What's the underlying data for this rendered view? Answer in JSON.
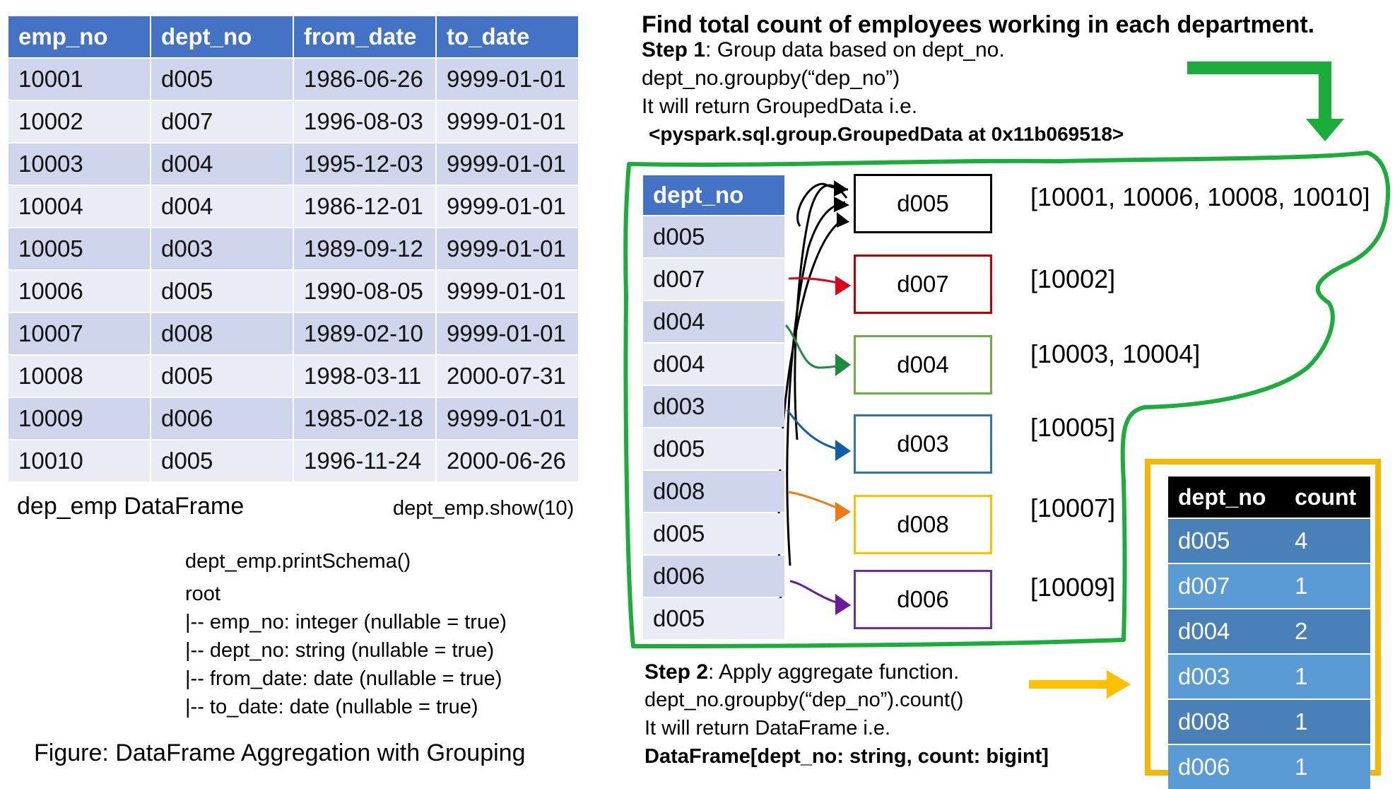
{
  "title": "Find total count of employees working in each department.",
  "emp_table": {
    "headers": [
      "emp_no",
      "dept_no",
      "from_date",
      "to_date"
    ],
    "rows": [
      [
        "10001",
        "d005",
        "1986-06-26",
        "9999-01-01"
      ],
      [
        "10002",
        "d007",
        "1996-08-03",
        "9999-01-01"
      ],
      [
        "10003",
        "d004",
        "1995-12-03",
        "9999-01-01"
      ],
      [
        "10004",
        "d004",
        "1986-12-01",
        "9999-01-01"
      ],
      [
        "10005",
        "d003",
        "1989-09-12",
        "9999-01-01"
      ],
      [
        "10006",
        "d005",
        "1990-08-05",
        "9999-01-01"
      ],
      [
        "10007",
        "d008",
        "1989-02-10",
        "9999-01-01"
      ],
      [
        "10008",
        "d005",
        "1998-03-11",
        "2000-07-31"
      ],
      [
        "10009",
        "d006",
        "1985-02-18",
        "9999-01-01"
      ],
      [
        "10010",
        "d005",
        "1996-11-24",
        "2000-06-26"
      ]
    ]
  },
  "captions": {
    "df_name": "dep_emp DataFrame",
    "show_call": "dept_emp.show(10)",
    "figure": "Figure: DataFrame Aggregation with Grouping"
  },
  "schema": {
    "call": "dept_emp.printSchema()",
    "root": "root",
    "fields": [
      "|-- emp_no: integer (nullable = true)",
      "|-- dept_no: string (nullable = true)",
      "|-- from_date: date (nullable = true)",
      "|-- to_date: date (nullable = true)"
    ]
  },
  "step1": {
    "label": "Step 1",
    "text": ": Group data based on dept_no.",
    "code": "dept_no.groupby(“dep_no”)",
    "returns": "It will return GroupedData i.e.",
    "object": "<pyspark.sql.group.GroupedData at 0x11b069518>"
  },
  "step2": {
    "label": "Step 2",
    "text": ": Apply aggregate function.",
    "code": "dept_no.groupby(“dep_no”).count()",
    "returns": "It will return DataFrame i.e.",
    "object": "DataFrame[dept_no: string, count: bigint]"
  },
  "dept_column": {
    "header": "dept_no",
    "values": [
      "d005",
      "d007",
      "d004",
      "d004",
      "d003",
      "d005",
      "d008",
      "d005",
      "d006",
      "d005"
    ]
  },
  "groups": [
    {
      "dept": "d005",
      "members": "[10001, 10006, 10008, 10010]",
      "color": "#000000"
    },
    {
      "dept": "d007",
      "members": "[10002]",
      "color": "#c00000"
    },
    {
      "dept": "d004",
      "members": "[10003, 10004]",
      "color": "#70ad47"
    },
    {
      "dept": "d003",
      "members": "[10005]",
      "color": "#2e75b6"
    },
    {
      "dept": "d008",
      "members": "[10007]",
      "color": "#ffc000"
    },
    {
      "dept": "d006",
      "members": "[10009]",
      "color": "#7030a0"
    }
  ],
  "result_table": {
    "headers": [
      "dept_no",
      "count"
    ],
    "rows": [
      [
        "d005",
        "4"
      ],
      [
        "d007",
        "1"
      ],
      [
        "d004",
        "2"
      ],
      [
        "d003",
        "1"
      ],
      [
        "d008",
        "1"
      ],
      [
        "d006",
        "1"
      ]
    ]
  },
  "colors": {
    "header_blue": "#4472c4",
    "group_outline_green": "#1aad3a",
    "result_outline_yellow": "#f5b800",
    "arrow_colors": [
      "#000000",
      "#e0001b",
      "#1a8c3a",
      "#0f5ea8",
      "#f07a10",
      "#6a1b9a"
    ]
  }
}
